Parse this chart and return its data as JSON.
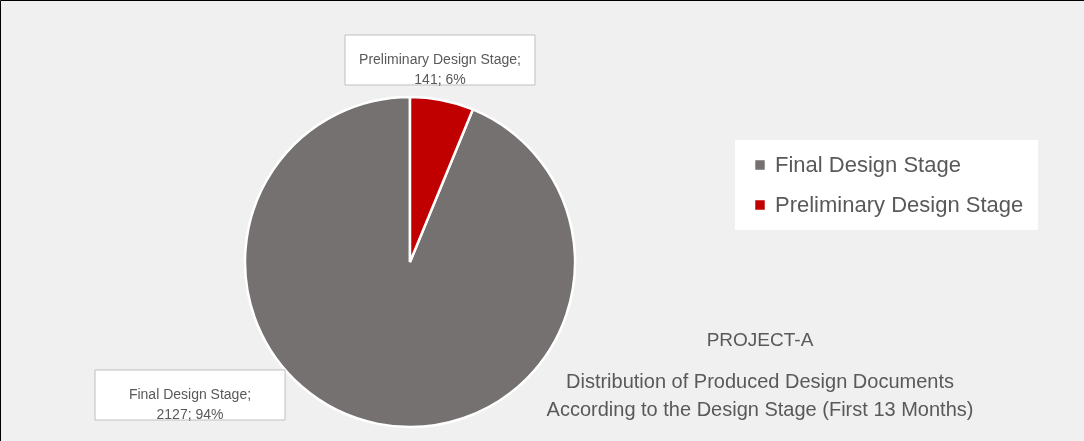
{
  "chart_data": {
    "type": "pie",
    "title": "PROJECT-A",
    "subtitle": "Distribution of Produced Design Documents\nAccording to the Design Stage (First 13 Months)",
    "categories": [
      "Final Design Stage",
      "Preliminary Design Stage"
    ],
    "values": [
      2127,
      141
    ],
    "colors": [
      "#767171",
      "#c00000"
    ],
    "value_labels": [
      "Final Design Stage;\n2127; 94%",
      "Preliminary Design Stage;\n141; 6%"
    ],
    "legend": "right"
  }
}
